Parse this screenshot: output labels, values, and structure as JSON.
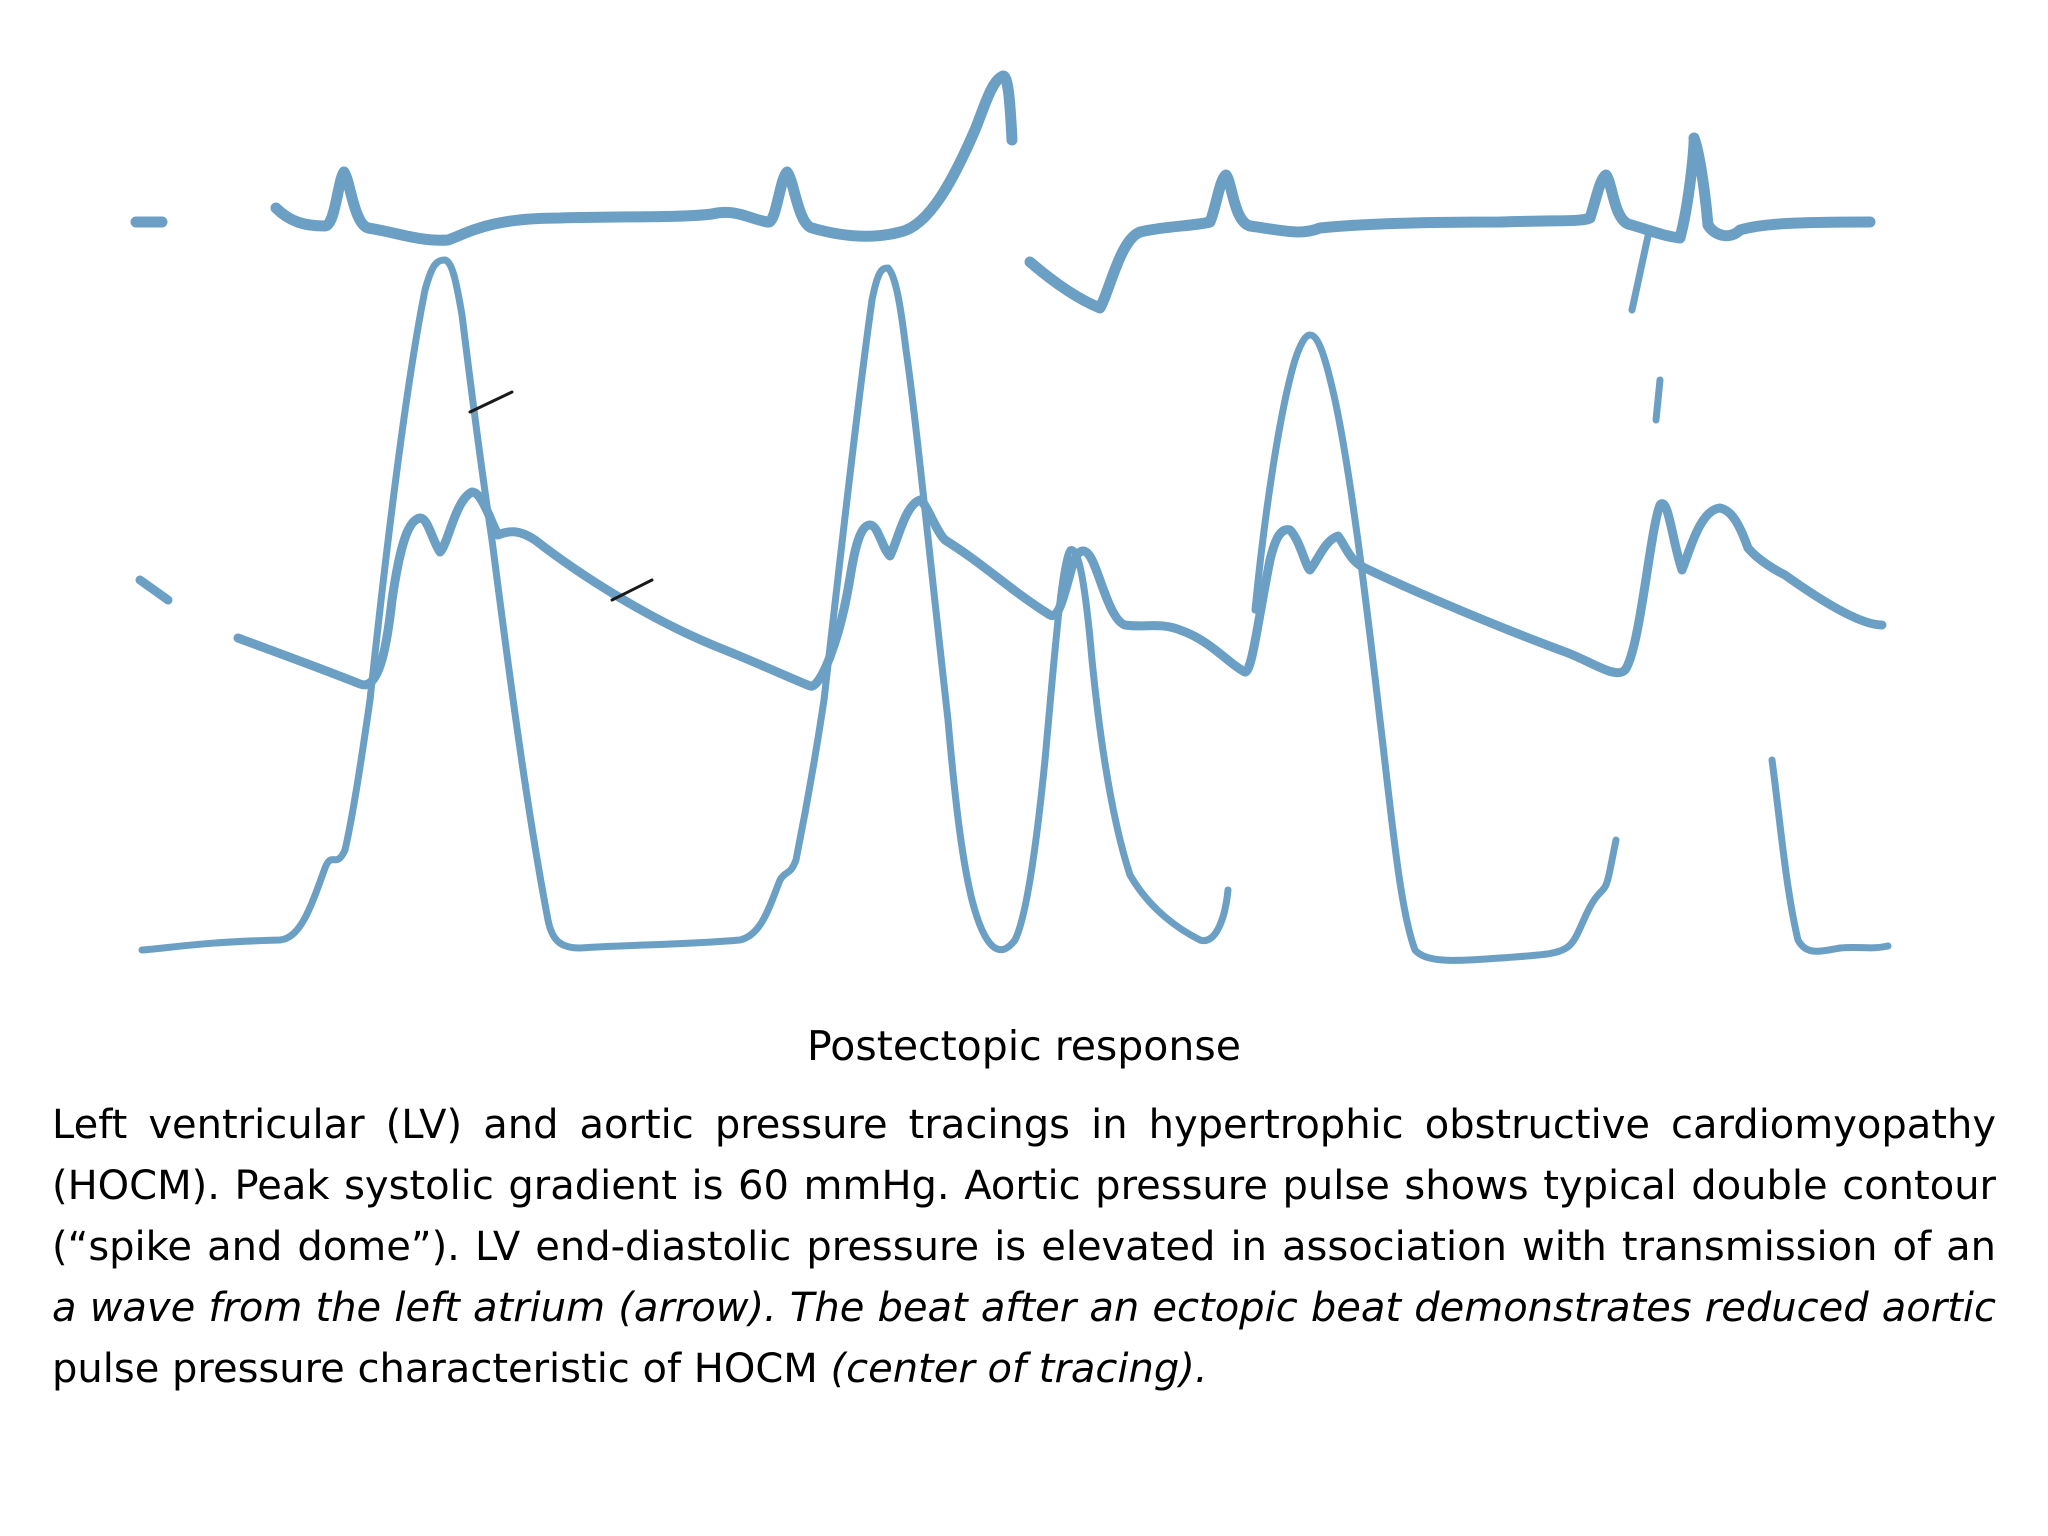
{
  "colors": {
    "trace": "#6b9fc4",
    "arrow": "#1a1a1a",
    "text": "#000000",
    "background": "#ffffff"
  },
  "figure": {
    "traces": [
      "ecg-trace",
      "aortic-pressure-trace",
      "lv-pressure-trace"
    ],
    "arrows": 2
  },
  "caption": {
    "title": "Postectopic response",
    "seg1": "Left ventricular (LV) and aortic pressure tracings in hypertrophic obstructive cardiomyopathy (HOCM). Peak systolic gradient is 60 mmHg. Aortic pressure pulse shows typical double contour (“spike and dome”). LV end-diastolic pressure is elevated in association with transmission of an ",
    "seg2": "a wave from the left atrium (arrow). The beat after an ectopic beat demonstrates reduced aortic",
    "seg3": " pulse pressure characteristic of HOCM ",
    "seg4": "(center of tracing)."
  }
}
